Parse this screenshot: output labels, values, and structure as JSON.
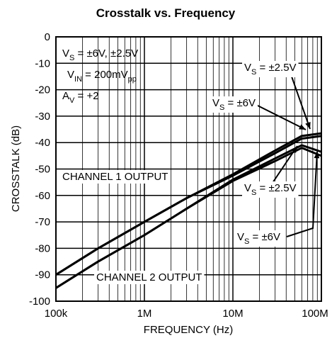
{
  "chart_data": {
    "type": "line",
    "title": "Crosstalk vs. Frequency",
    "x_label": "FREQUENCY (Hz)",
    "y_label": "CROSSTALK (dB)",
    "x_log": true,
    "minor_grid": true,
    "grid": true,
    "color": "#000000",
    "xlim": [
      100000,
      100000000
    ],
    "xticks": [
      {
        "value": 100000,
        "label": "100k"
      },
      {
        "value": 1000000,
        "label": "1M"
      },
      {
        "value": 10000000,
        "label": "10M"
      },
      {
        "value": 100000000,
        "label": "100M"
      }
    ],
    "ylim": [
      -100,
      0
    ],
    "yticks": [
      0,
      -10,
      -20,
      -30,
      -40,
      -50,
      -60,
      -70,
      -80,
      -90,
      -100
    ],
    "x": [
      100000,
      300000,
      1000000,
      3000000,
      10000000,
      30000000,
      60000000,
      100000000
    ],
    "series": [
      {
        "color": "#000000",
        "values": [
          -90,
          -80,
          -70,
          -61,
          -52,
          -43,
          -37.5,
          -36.5
        ]
      },
      {
        "color": "#000000",
        "values": [
          -90,
          -80,
          -70,
          -61,
          -52.5,
          -44,
          -38.5,
          -37.5
        ]
      },
      {
        "color": "#000000",
        "values": [
          -95,
          -85,
          -75,
          -65,
          -54,
          -46,
          -41,
          -43.5
        ]
      },
      {
        "color": "#000000",
        "values": [
          -95,
          -85,
          -75,
          -65,
          -54.5,
          -47,
          -42,
          -45
        ]
      }
    ],
    "annotations": [
      {
        "parts": [
          {
            "t": "V"
          },
          {
            "t": "S",
            "sub": true
          },
          {
            "t": " = ±6V, ±2.5V"
          }
        ]
      },
      {
        "parts": [
          {
            "t": "V"
          },
          {
            "t": "IN",
            "sub": true
          },
          {
            "t": " = 200mV"
          },
          {
            "t": "pp",
            "sub": true
          }
        ]
      },
      {
        "parts": [
          {
            "t": "A"
          },
          {
            "t": "V",
            "sub": true
          },
          {
            "t": " = +2"
          }
        ]
      },
      {
        "parts": [
          {
            "t": "V"
          },
          {
            "t": "S",
            "sub": true
          },
          {
            "t": " = ±2.5V"
          }
        ]
      },
      {
        "parts": [
          {
            "t": "V"
          },
          {
            "t": "S",
            "sub": true
          },
          {
            "t": " = ±6V"
          }
        ]
      },
      {
        "parts": [
          {
            "t": "CHANNEL 1 OUTPUT"
          }
        ]
      },
      {
        "parts": [
          {
            "t": "V"
          },
          {
            "t": "S",
            "sub": true
          },
          {
            "t": " = ±2.5V"
          }
        ]
      },
      {
        "parts": [
          {
            "t": "V"
          },
          {
            "t": "S",
            "sub": true
          },
          {
            "t": " = ±6V"
          }
        ]
      },
      {
        "parts": [
          {
            "t": "CHANNEL 2 OUTPUT"
          }
        ]
      }
    ]
  }
}
